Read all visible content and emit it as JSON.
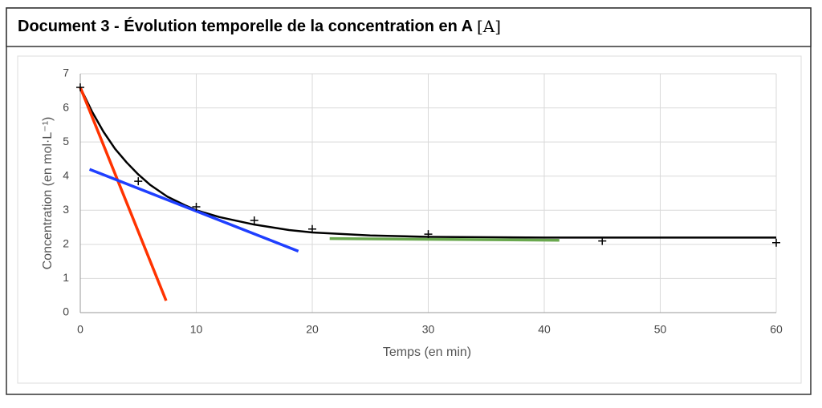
{
  "chart_data": {
    "type": "scatter",
    "title": "Document 3 - Évolution temporelle de la concentration en A",
    "title_symbol": "[A]",
    "xlabel": "Temps (en min)",
    "ylabel": "Concentration (en mol·L⁻¹)",
    "xlim": [
      0,
      60
    ],
    "ylim": [
      0,
      7
    ],
    "xticks": [
      0,
      10,
      20,
      30,
      40,
      50,
      60
    ],
    "yticks": [
      0,
      1,
      2,
      3,
      4,
      5,
      6,
      7
    ],
    "grid": true,
    "series": [
      {
        "type": "scatter",
        "color": "#000000",
        "x": [
          0,
          5,
          10,
          15,
          20,
          30,
          45,
          60
        ],
        "values": [
          6.6,
          3.85,
          3.1,
          2.7,
          2.45,
          2.3,
          2.1,
          2.05
        ]
      },
      {
        "type": "line",
        "color": "#000000",
        "x": [
          0,
          1,
          2,
          3,
          4,
          5,
          6,
          7.5,
          9,
          10,
          12,
          15,
          18,
          20,
          25,
          30,
          40,
          50,
          60
        ],
        "values": [
          6.6,
          5.9,
          5.3,
          4.8,
          4.4,
          4.05,
          3.75,
          3.4,
          3.15,
          3.0,
          2.8,
          2.58,
          2.42,
          2.35,
          2.26,
          2.22,
          2.2,
          2.2,
          2.2
        ]
      },
      {
        "type": "line",
        "color": "#ff3300",
        "x": [
          0,
          7.4
        ],
        "values": [
          6.6,
          0.35
        ]
      },
      {
        "type": "line",
        "color": "#1f3fff",
        "x": [
          0.8,
          18.8
        ],
        "values": [
          4.2,
          1.8
        ]
      },
      {
        "type": "line",
        "color": "#6aa84f",
        "x": [
          21.5,
          41.3
        ],
        "values": [
          2.17,
          2.12
        ]
      }
    ]
  }
}
